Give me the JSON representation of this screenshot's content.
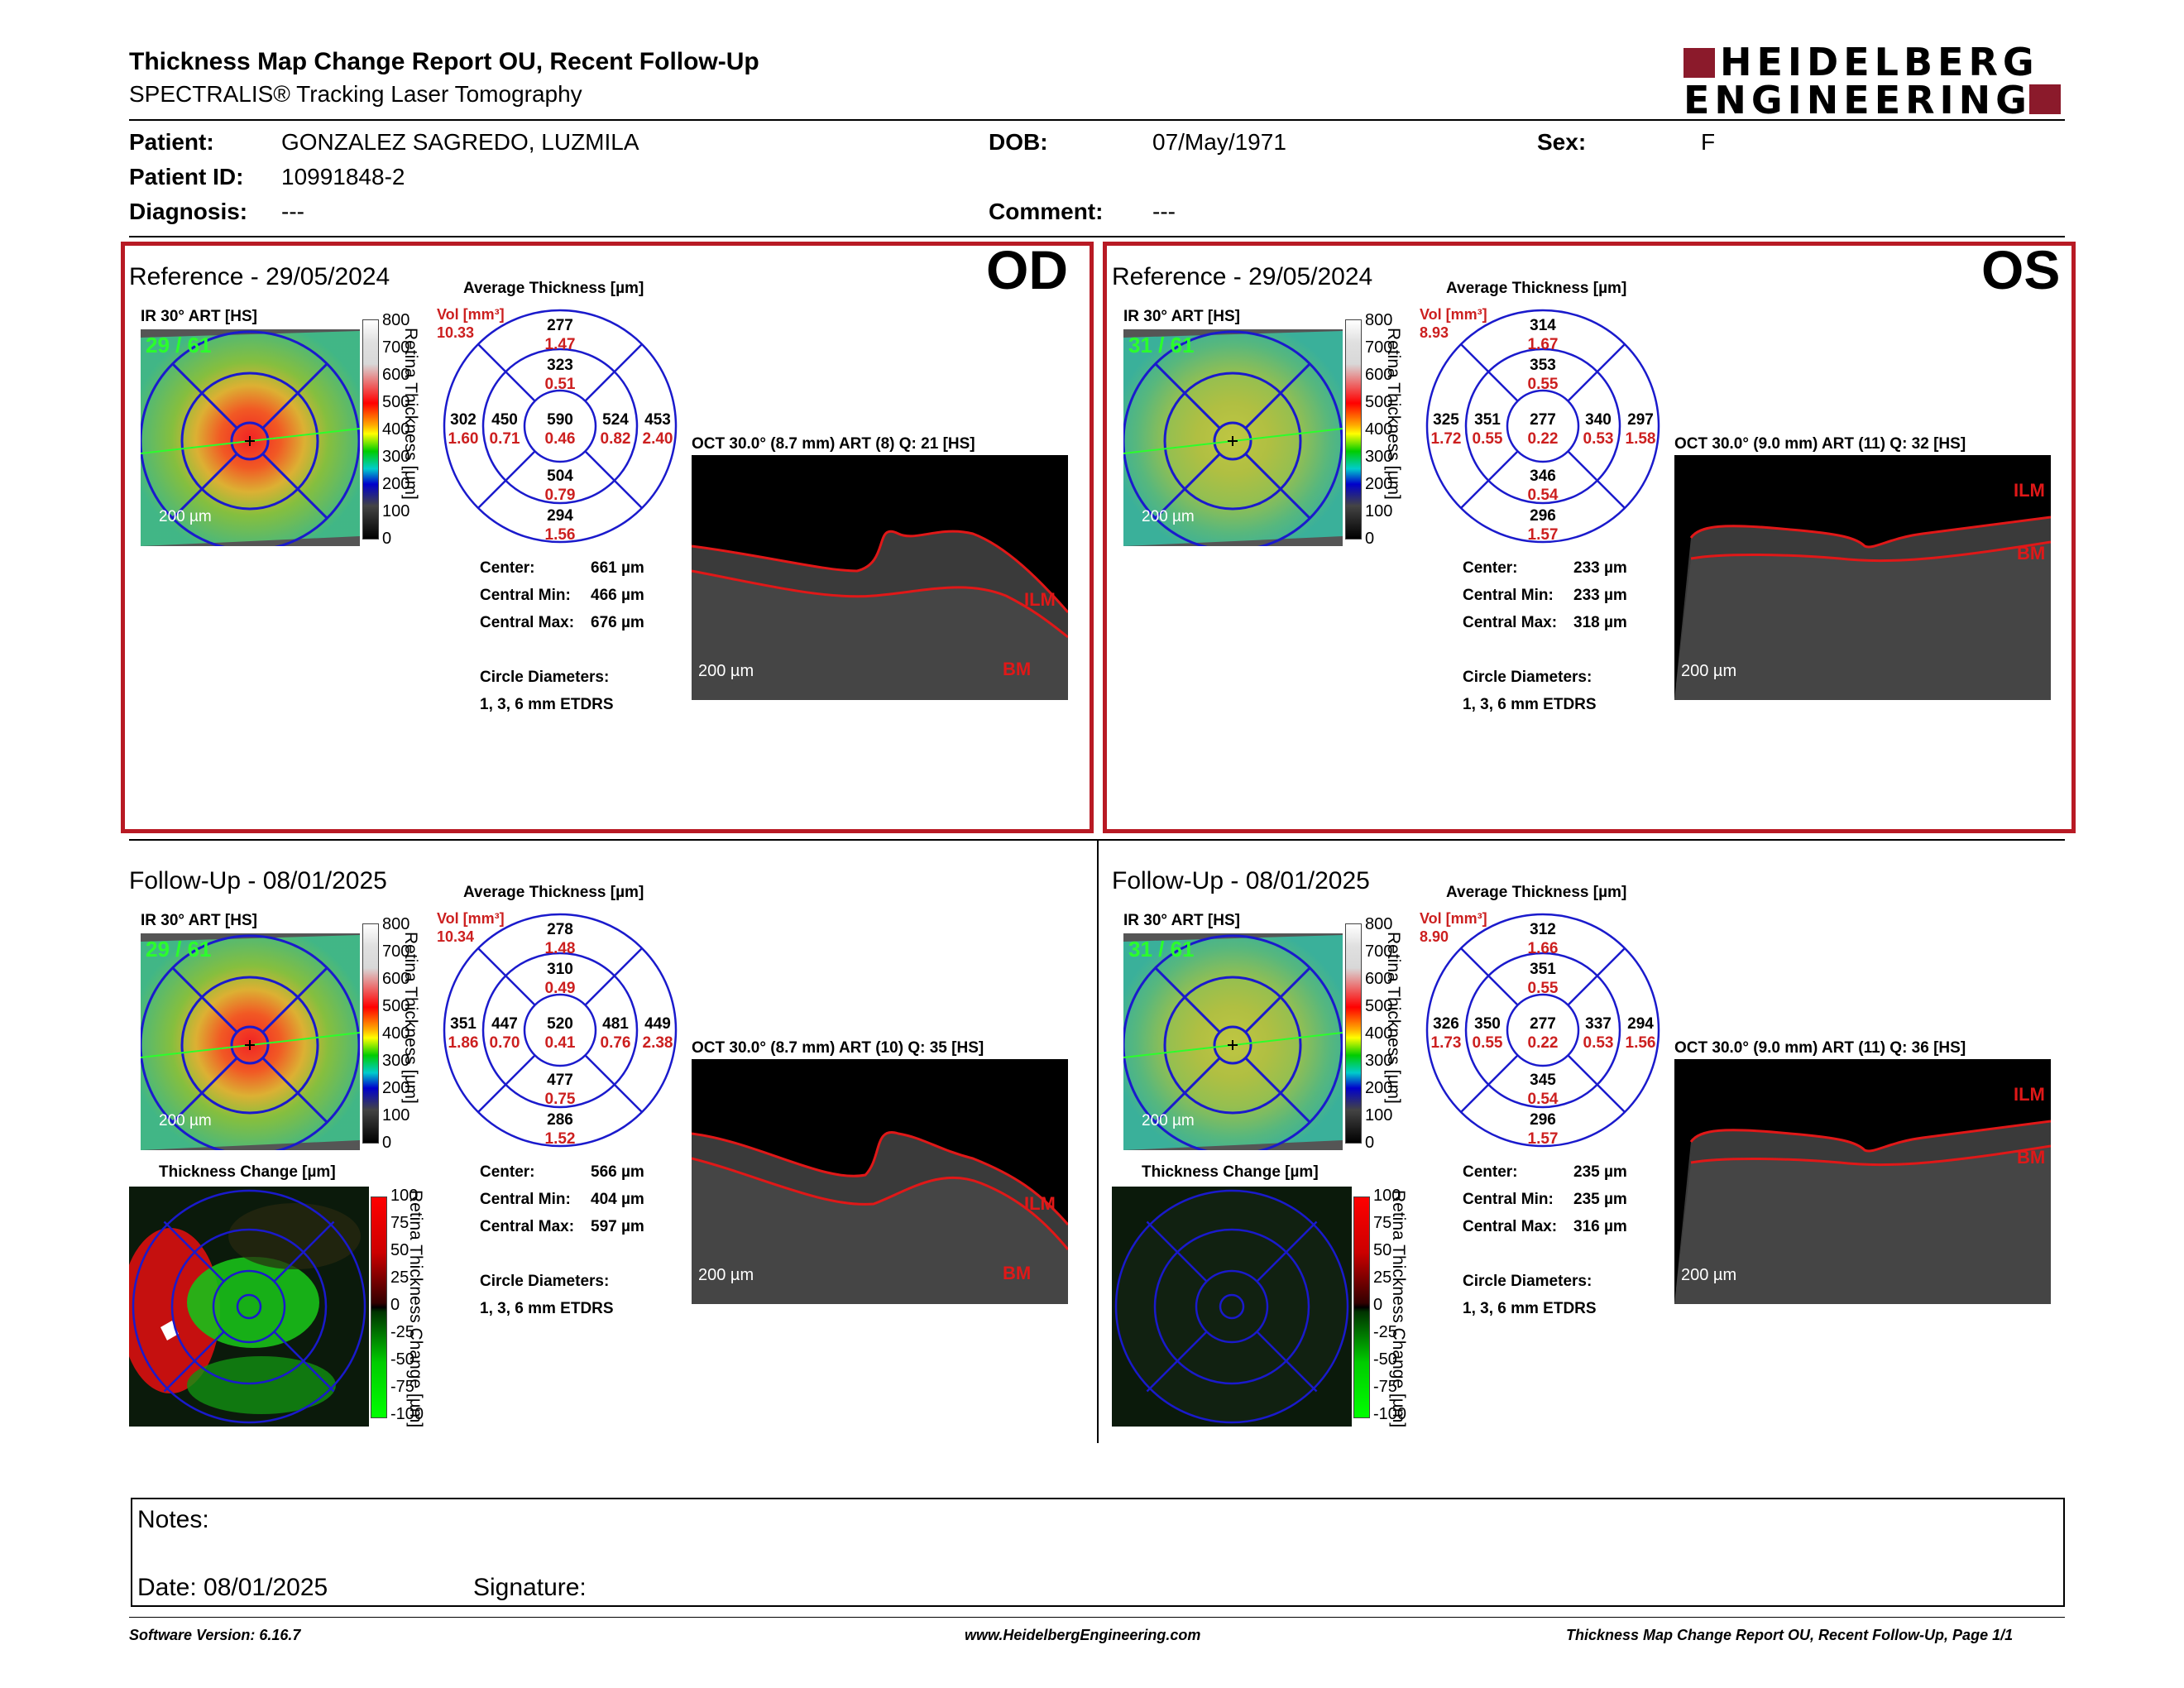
{
  "header": {
    "title": "Thickness Map Change Report OU, Recent Follow-Up",
    "subtitle": "SPECTRALIS® Tracking Laser Tomography",
    "logo_line1": "HEIDELBERG",
    "logo_line2": "ENGINEERING",
    "brand_color": "#8b1a2b"
  },
  "patient": {
    "patient_label": "Patient:",
    "patient_value": "GONZALEZ SAGREDO, LUZMILA",
    "id_label": "Patient ID:",
    "id_value": "10991848-2",
    "diagnosis_label": "Diagnosis:",
    "diagnosis_value": "---",
    "dob_label": "DOB:",
    "dob_value": "07/May/1971",
    "comment_label": "Comment:",
    "comment_value": "---",
    "sex_label": "Sex:",
    "sex_value": "F"
  },
  "common": {
    "ir_label": "IR 30° ART [HS]",
    "avg_thickness": "Average Thickness [µm]",
    "vol_label": "Vol [mm³]",
    "scale_200": "200 µm",
    "retina_axis": "Retina Thickness [µm]",
    "change_axis": "Retina Thickness Change [µm]",
    "thickness_change": "Thickness Change [µm]",
    "center_label": "Center:",
    "cmin_label": "Central Min:",
    "cmax_label": "Central Max:",
    "circle_label": "Circle Diameters:",
    "circle_value": "1, 3, 6 mm ETDRS",
    "colorbar_ticks": [
      "800",
      "700",
      "600",
      "500",
      "400",
      "300",
      "200",
      "100",
      "0"
    ],
    "change_ticks": [
      "100",
      "75",
      "50",
      "25",
      "0",
      "-25",
      "-50",
      "-75",
      "-100"
    ],
    "ilm": "ILM",
    "bm": "BM"
  },
  "od": {
    "eye": "OD",
    "ref": {
      "title": "Reference - 29/05/2024",
      "frames": "29 / 61",
      "vol": "10.33",
      "oct_label": "OCT 30.0° (8.7 mm) ART (8) Q: 21 [HS]",
      "thickness": {
        "top_outer": "277",
        "top_inner": "323",
        "center": "590",
        "left_outer": "302",
        "left_inner": "450",
        "right_inner": "524",
        "right_outer": "453",
        "bottom_inner": "504",
        "bottom_outer": "294"
      },
      "volume": {
        "top_outer": "1.47",
        "top_inner": "0.51",
        "center": "0.46",
        "left_outer": "1.60",
        "left_inner": "0.71",
        "right_inner": "0.82",
        "right_outer": "2.40",
        "bottom_inner": "0.79",
        "bottom_outer": "1.56"
      },
      "center_value": "661 µm",
      "cmin_value": "466 µm",
      "cmax_value": "676 µm"
    },
    "fu": {
      "title": "Follow-Up - 08/01/2025",
      "frames": "29 / 61",
      "vol": "10.34",
      "oct_label": "OCT 30.0° (8.7 mm) ART (10) Q: 35 [HS]",
      "thickness": {
        "top_outer": "278",
        "top_inner": "310",
        "center": "520",
        "left_outer": "351",
        "left_inner": "447",
        "right_inner": "481",
        "right_outer": "449",
        "bottom_inner": "477",
        "bottom_outer": "286"
      },
      "volume": {
        "top_outer": "1.48",
        "top_inner": "0.49",
        "center": "0.41",
        "left_outer": "1.86",
        "left_inner": "0.70",
        "right_inner": "0.76",
        "right_outer": "2.38",
        "bottom_inner": "0.75",
        "bottom_outer": "1.52"
      },
      "center_value": "566 µm",
      "cmin_value": "404 µm",
      "cmax_value": "597 µm"
    }
  },
  "os": {
    "eye": "OS",
    "ref": {
      "title": "Reference - 29/05/2024",
      "frames": "31 / 61",
      "vol": "8.93",
      "oct_label": "OCT 30.0° (9.0 mm) ART (11) Q: 32 [HS]",
      "thickness": {
        "top_outer": "314",
        "top_inner": "353",
        "center": "277",
        "left_outer": "325",
        "left_inner": "351",
        "right_inner": "340",
        "right_outer": "297",
        "bottom_inner": "346",
        "bottom_outer": "296"
      },
      "volume": {
        "top_outer": "1.67",
        "top_inner": "0.55",
        "center": "0.22",
        "left_outer": "1.72",
        "left_inner": "0.55",
        "right_inner": "0.53",
        "right_outer": "1.58",
        "bottom_inner": "0.54",
        "bottom_outer": "1.57"
      },
      "center_value": "233 µm",
      "cmin_value": "233 µm",
      "cmax_value": "318 µm"
    },
    "fu": {
      "title": "Follow-Up - 08/01/2025",
      "frames": "31 / 61",
      "vol": "8.90",
      "oct_label": "OCT 30.0° (9.0 mm) ART (11) Q: 36 [HS]",
      "thickness": {
        "top_outer": "312",
        "top_inner": "351",
        "center": "277",
        "left_outer": "326",
        "left_inner": "350",
        "right_inner": "337",
        "right_outer": "294",
        "bottom_inner": "345",
        "bottom_outer": "296"
      },
      "volume": {
        "top_outer": "1.66",
        "top_inner": "0.55",
        "center": "0.22",
        "left_outer": "1.73",
        "left_inner": "0.55",
        "right_inner": "0.53",
        "right_outer": "1.56",
        "bottom_inner": "0.54",
        "bottom_outer": "1.57"
      },
      "center_value": "235 µm",
      "cmin_value": "235 µm",
      "cmax_value": "316 µm"
    }
  },
  "notes": {
    "notes_label": "Notes:",
    "date_label": "Date: 08/01/2025",
    "signature_label": "Signature:"
  },
  "footer": {
    "software": "Software Version: 6.16.7",
    "website": "www.HeidelbergEngineering.com",
    "page": "Thickness Map Change Report OU, Recent Follow-Up, Page 1/1"
  }
}
